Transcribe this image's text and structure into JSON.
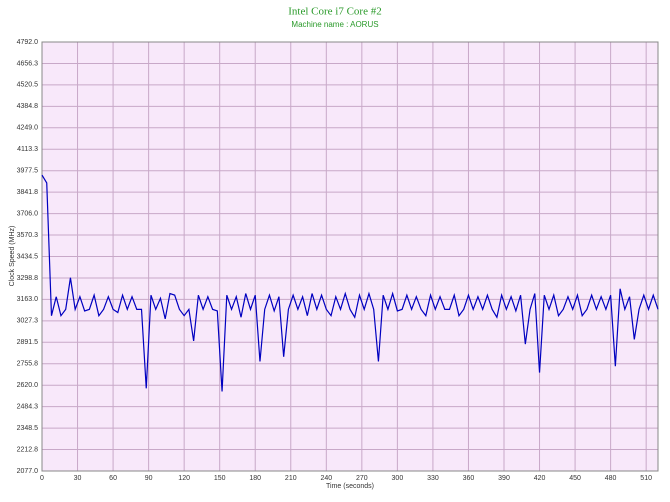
{
  "chart_data": {
    "type": "line",
    "title": "Intel Core i7 Core #2",
    "subtitle": "Machine name : AORUS",
    "x_label": "Time (seconds)",
    "y_label": "Clock Speed (MHz)",
    "xlim": [
      0,
      520
    ],
    "ylim": [
      2077,
      4792
    ],
    "xticks": [
      0,
      30,
      60,
      90,
      120,
      150,
      180,
      210,
      240,
      270,
      300,
      330,
      360,
      390,
      420,
      450,
      480,
      510
    ],
    "yticks": [
      {
        "value": 2077,
        "label": "2077.0"
      },
      2212.8,
      2348.5,
      2484.3,
      {
        "value": 2620,
        "label": "2620.0"
      },
      2755.8,
      2891.5,
      3027.3,
      {
        "value": 3163,
        "label": "3163.0"
      },
      3298.8,
      3434.5,
      3570.3,
      {
        "value": 3706,
        "label": "3706.0"
      },
      3841.8,
      3977.5,
      4113.3,
      {
        "value": 4249,
        "label": "4249.0"
      },
      4384.8,
      4520.5,
      4656.3,
      {
        "value": 4792,
        "label": "4792.0"
      }
    ],
    "grid": true,
    "x": [
      0,
      4,
      8,
      12,
      16,
      20,
      24,
      28,
      32,
      36,
      40,
      44,
      48,
      52,
      56,
      60,
      64,
      68,
      72,
      76,
      80,
      84,
      88,
      92,
      96,
      100,
      104,
      108,
      112,
      116,
      120,
      124,
      128,
      132,
      136,
      140,
      144,
      148,
      152,
      156,
      160,
      164,
      168,
      172,
      176,
      180,
      184,
      188,
      192,
      196,
      200,
      204,
      208,
      212,
      216,
      220,
      224,
      228,
      232,
      236,
      240,
      244,
      248,
      252,
      256,
      260,
      264,
      268,
      272,
      276,
      280,
      284,
      288,
      292,
      296,
      300,
      304,
      308,
      312,
      316,
      320,
      324,
      328,
      332,
      336,
      340,
      344,
      348,
      352,
      356,
      360,
      364,
      368,
      372,
      376,
      380,
      384,
      388,
      392,
      396,
      400,
      404,
      408,
      412,
      416,
      420,
      424,
      428,
      432,
      436,
      440,
      444,
      448,
      452,
      456,
      460,
      464,
      468,
      472,
      476,
      480,
      484,
      488,
      492,
      496,
      500,
      504,
      508,
      512,
      516,
      520
    ],
    "series": [
      {
        "name": "Clock Speed",
        "color": "#0000c0",
        "values": [
          3950,
          3900,
          3060,
          3180,
          3060,
          3100,
          3300,
          3100,
          3180,
          3090,
          3100,
          3190,
          3060,
          3100,
          3180,
          3100,
          3080,
          3190,
          3100,
          3180,
          3100,
          3100,
          2600,
          3190,
          3100,
          3170,
          3040,
          3200,
          3190,
          3100,
          3060,
          3100,
          2900,
          3190,
          3100,
          3180,
          3100,
          3090,
          2580,
          3190,
          3100,
          3180,
          3050,
          3200,
          3100,
          3190,
          2770,
          3100,
          3190,
          3090,
          3180,
          2800,
          3100,
          3190,
          3100,
          3180,
          3060,
          3200,
          3100,
          3190,
          3100,
          3060,
          3180,
          3100,
          3200,
          3100,
          3050,
          3190,
          3100,
          3200,
          3100,
          2770,
          3190,
          3100,
          3200,
          3090,
          3100,
          3190,
          3100,
          3180,
          3100,
          3060,
          3190,
          3100,
          3180,
          3100,
          3100,
          3190,
          3060,
          3100,
          3190,
          3100,
          3180,
          3100,
          3190,
          3100,
          3050,
          3190,
          3100,
          3180,
          3090,
          3190,
          2880,
          3100,
          3200,
          2700,
          3190,
          3100,
          3190,
          3060,
          3100,
          3180,
          3100,
          3190,
          3060,
          3100,
          3190,
          3100,
          3180,
          3100,
          3190,
          2740,
          3230,
          3100,
          3180,
          2910,
          3100,
          3190,
          3100,
          3190,
          3100
        ]
      }
    ]
  }
}
